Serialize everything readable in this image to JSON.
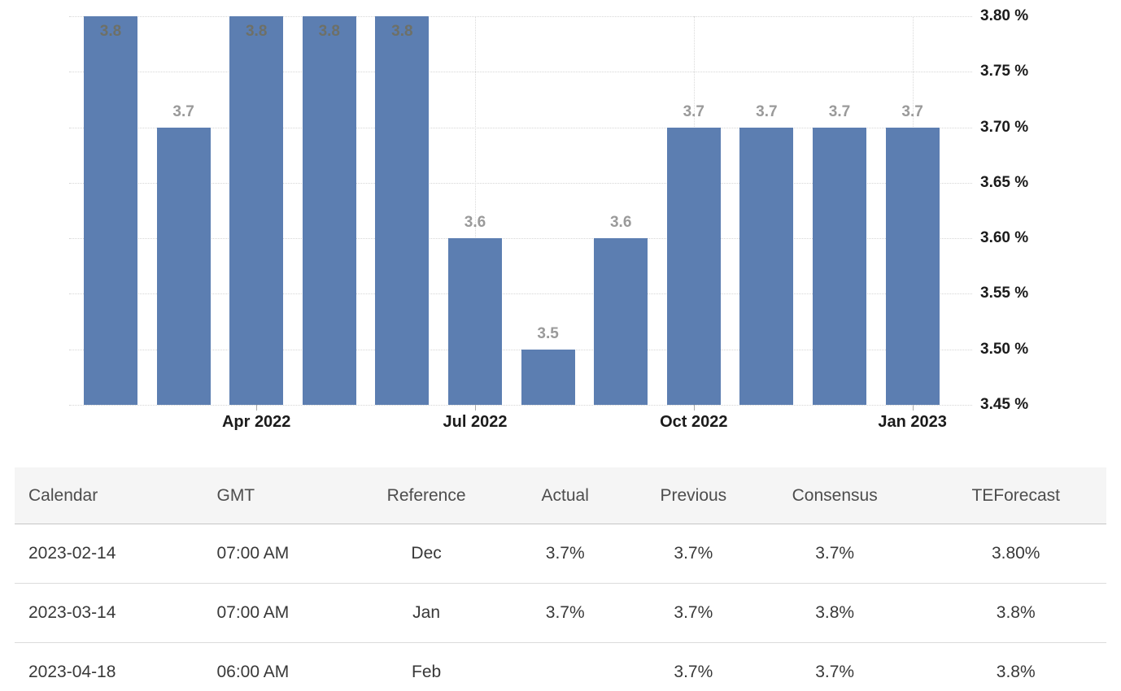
{
  "chart_data": {
    "type": "bar",
    "title": "",
    "xlabel": "",
    "ylabel": "",
    "values": [
      3.8,
      3.7,
      3.8,
      3.8,
      3.8,
      3.6,
      3.5,
      3.6,
      3.7,
      3.7,
      3.7,
      3.7
    ],
    "data_labels": [
      "3.8",
      "3.7",
      "3.8",
      "3.8",
      "3.8",
      "3.6",
      "3.5",
      "3.6",
      "3.7",
      "3.7",
      "3.7",
      "3.7"
    ],
    "x_tick_labels": [
      "Apr 2022",
      "Jul 2022",
      "Oct 2022",
      "Jan 2023"
    ],
    "x_tick_bar_indices": [
      2,
      5,
      8,
      11
    ],
    "y_tick_labels": [
      "3.80 %",
      "3.75 %",
      "3.70 %",
      "3.65 %",
      "3.60 %",
      "3.55 %",
      "3.50 %",
      "3.45 %"
    ],
    "ylim": [
      3.45,
      3.8
    ],
    "grid": true,
    "legend": "none",
    "bar_color": "#5c7eb1",
    "label_color_outside": "#9a9a9a",
    "label_color_inside": "#6e7067",
    "grid_color": "#d6d6d6",
    "axis_text_color": "#1b1b1b"
  },
  "table": {
    "headers": [
      "Calendar",
      "GMT",
      "Reference",
      "Actual",
      "Previous",
      "Consensus",
      "TEForecast"
    ],
    "rows": [
      [
        "2023-02-14",
        "07:00 AM",
        "Dec",
        "3.7%",
        "3.7%",
        "3.7%",
        "3.80%"
      ],
      [
        "2023-03-14",
        "07:00 AM",
        "Jan",
        "3.7%",
        "3.7%",
        "3.8%",
        "3.8%"
      ],
      [
        "2023-04-18",
        "06:00 AM",
        "Feb",
        "",
        "3.7%",
        "3.7%",
        "3.8%"
      ]
    ]
  }
}
